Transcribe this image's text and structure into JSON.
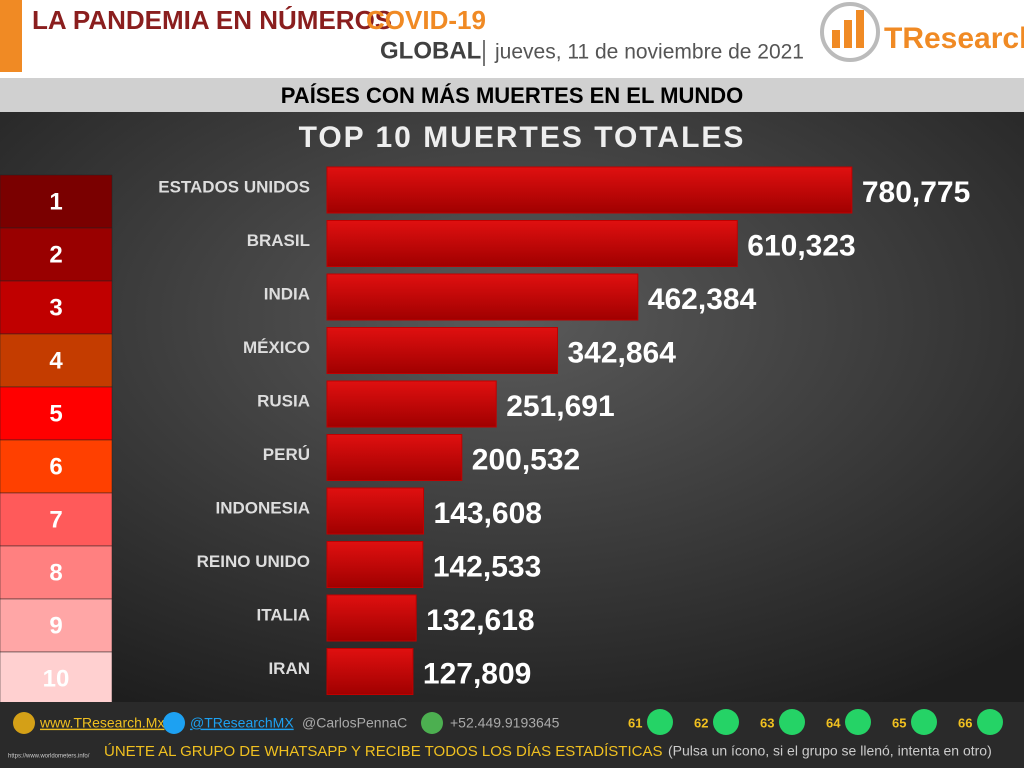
{
  "header": {
    "title": "LA PANDEMIA EN NÚMEROS",
    "title_highlight": "COVID-19",
    "scope": "GLOBAL",
    "date": "jueves, 11 de noviembre de 2021",
    "logo": "TResearch"
  },
  "subtitle": "PAÍSES CON MÁS MUERTES EN EL MUNDO",
  "ranks": {
    "labels": [
      1,
      2,
      3,
      4,
      5,
      6,
      7,
      8,
      9,
      10
    ],
    "colors": [
      "#7a0000",
      "#990000",
      "#c00000",
      "#c43c00",
      "#ff0000",
      "#ff4000",
      "#ff5a5a",
      "#ff8080",
      "#ffa6a6",
      "#ffd0d0"
    ]
  },
  "chart_data": {
    "type": "bar",
    "orientation": "horizontal",
    "title": "TOP 10 MUERTES TOTALES",
    "categories": [
      "ESTADOS UNIDOS",
      "BRASIL",
      "INDIA",
      "MÉXICO",
      "RUSIA",
      "PERÚ",
      "INDONESIA",
      "REINO UNIDO",
      "ITALIA",
      "IRAN"
    ],
    "values": [
      780775,
      610323,
      462384,
      342864,
      251691,
      200532,
      143608,
      142533,
      132618,
      127809
    ],
    "value_labels": [
      "780,775",
      "610,323",
      "462,384",
      "342,864",
      "251,691",
      "200,532",
      "143,608",
      "142,533",
      "132,618",
      "127,809"
    ],
    "color": "#c00000",
    "xlim": [
      0,
      900000
    ]
  },
  "footer": {
    "website": "www.TResearch.Mx",
    "twitter": "@TResearchMX",
    "twitter2": "@CarlosPennaC",
    "phone": "+52.449.9193645",
    "groups": [
      61,
      62,
      63,
      64,
      65,
      66
    ],
    "cta": "ÚNETE AL GRUPO DE WHATSAPP Y RECIBE TODOS LOS DÍAS ESTADÍSTICAS",
    "cta_note": "(Pulsa un ícono, si el grupo se llenó, intenta en otro)",
    "source": "https://www.worldometers.info/"
  }
}
